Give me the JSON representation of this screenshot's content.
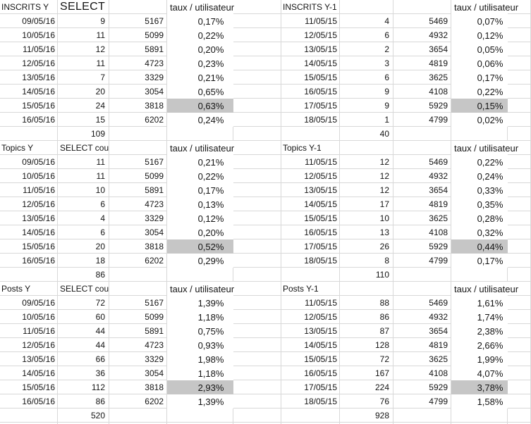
{
  "meta": {
    "gridline_color": "#d8d8d8",
    "highlight_color": "#c6c6c6",
    "text_color": "#141414",
    "background_color": "#ffffff"
  },
  "blocks": [
    {
      "left": {
        "title": "INSCRITS Y",
        "query_label": "SELECT c",
        "query_label_large": true,
        "taux_label": "taux / utilisateur",
        "rows": [
          {
            "date": "09/05/16",
            "count": "9",
            "users": "5167",
            "taux": "0,17%",
            "highlight": false
          },
          {
            "date": "10/05/16",
            "count": "11",
            "users": "5099",
            "taux": "0,22%",
            "highlight": false
          },
          {
            "date": "11/05/16",
            "count": "12",
            "users": "5891",
            "taux": "0,20%",
            "highlight": false
          },
          {
            "date": "12/05/16",
            "count": "11",
            "users": "4723",
            "taux": "0,23%",
            "highlight": false
          },
          {
            "date": "13/05/16",
            "count": "7",
            "users": "3329",
            "taux": "0,21%",
            "highlight": false
          },
          {
            "date": "14/05/16",
            "count": "20",
            "users": "3054",
            "taux": "0,65%",
            "highlight": false
          },
          {
            "date": "15/05/16",
            "count": "24",
            "users": "3818",
            "taux": "0,63%",
            "highlight": true
          },
          {
            "date": "16/05/16",
            "count": "15",
            "users": "6202",
            "taux": "0,24%",
            "highlight": false
          }
        ],
        "total": "109"
      },
      "right": {
        "title": "INSCRITS Y-1",
        "taux_label": "taux / utilisateur",
        "rows": [
          {
            "date": "11/05/15",
            "count": "4",
            "users": "5469",
            "taux": "0,07%",
            "highlight": false
          },
          {
            "date": "12/05/15",
            "count": "6",
            "users": "4932",
            "taux": "0,12%",
            "highlight": false
          },
          {
            "date": "13/05/15",
            "count": "2",
            "users": "3654",
            "taux": "0,05%",
            "highlight": false
          },
          {
            "date": "14/05/15",
            "count": "3",
            "users": "4819",
            "taux": "0,06%",
            "highlight": false
          },
          {
            "date": "15/05/15",
            "count": "6",
            "users": "3625",
            "taux": "0,17%",
            "highlight": false
          },
          {
            "date": "16/05/15",
            "count": "9",
            "users": "4108",
            "taux": "0,22%",
            "highlight": false
          },
          {
            "date": "17/05/15",
            "count": "9",
            "users": "5929",
            "taux": "0,15%",
            "highlight": true
          },
          {
            "date": "18/05/15",
            "count": "1",
            "users": "4799",
            "taux": "0,02%",
            "highlight": false
          }
        ],
        "total": "40"
      }
    },
    {
      "left": {
        "title": "Topics Y",
        "query_label": "SELECT count",
        "query_label_large": false,
        "taux_label": "taux / utilisateur",
        "rows": [
          {
            "date": "09/05/16",
            "count": "11",
            "users": "5167",
            "taux": "0,21%",
            "highlight": false
          },
          {
            "date": "10/05/16",
            "count": "11",
            "users": "5099",
            "taux": "0,22%",
            "highlight": false
          },
          {
            "date": "11/05/16",
            "count": "10",
            "users": "5891",
            "taux": "0,17%",
            "highlight": false
          },
          {
            "date": "12/05/16",
            "count": "6",
            "users": "4723",
            "taux": "0,13%",
            "highlight": false
          },
          {
            "date": "13/05/16",
            "count": "4",
            "users": "3329",
            "taux": "0,12%",
            "highlight": false
          },
          {
            "date": "14/05/16",
            "count": "6",
            "users": "3054",
            "taux": "0,20%",
            "highlight": false
          },
          {
            "date": "15/05/16",
            "count": "20",
            "users": "3818",
            "taux": "0,52%",
            "highlight": true
          },
          {
            "date": "16/05/16",
            "count": "18",
            "users": "6202",
            "taux": "0,29%",
            "highlight": false
          }
        ],
        "total": "86"
      },
      "right": {
        "title": "Topics Y-1",
        "taux_label": "taux / utilisateur",
        "rows": [
          {
            "date": "11/05/15",
            "count": "12",
            "users": "5469",
            "taux": "0,22%",
            "highlight": false
          },
          {
            "date": "12/05/15",
            "count": "12",
            "users": "4932",
            "taux": "0,24%",
            "highlight": false
          },
          {
            "date": "13/05/15",
            "count": "12",
            "users": "3654",
            "taux": "0,33%",
            "highlight": false
          },
          {
            "date": "14/05/15",
            "count": "17",
            "users": "4819",
            "taux": "0,35%",
            "highlight": false
          },
          {
            "date": "15/05/15",
            "count": "10",
            "users": "3625",
            "taux": "0,28%",
            "highlight": false
          },
          {
            "date": "16/05/15",
            "count": "13",
            "users": "4108",
            "taux": "0,32%",
            "highlight": false
          },
          {
            "date": "17/05/15",
            "count": "26",
            "users": "5929",
            "taux": "0,44%",
            "highlight": true
          },
          {
            "date": "18/05/15",
            "count": "8",
            "users": "4799",
            "taux": "0,17%",
            "highlight": false
          }
        ],
        "total": "110"
      }
    },
    {
      "left": {
        "title": "Posts Y",
        "query_label": "SELECT count",
        "query_label_large": false,
        "taux_label": "taux / utilisateur",
        "rows": [
          {
            "date": "09/05/16",
            "count": "72",
            "users": "5167",
            "taux": "1,39%",
            "highlight": false
          },
          {
            "date": "10/05/16",
            "count": "60",
            "users": "5099",
            "taux": "1,18%",
            "highlight": false
          },
          {
            "date": "11/05/16",
            "count": "44",
            "users": "5891",
            "taux": "0,75%",
            "highlight": false
          },
          {
            "date": "12/05/16",
            "count": "44",
            "users": "4723",
            "taux": "0,93%",
            "highlight": false
          },
          {
            "date": "13/05/16",
            "count": "66",
            "users": "3329",
            "taux": "1,98%",
            "highlight": false
          },
          {
            "date": "14/05/16",
            "count": "36",
            "users": "3054",
            "taux": "1,18%",
            "highlight": false
          },
          {
            "date": "15/05/16",
            "count": "112",
            "users": "3818",
            "taux": "2,93%",
            "highlight": true
          },
          {
            "date": "16/05/16",
            "count": "86",
            "users": "6202",
            "taux": "1,39%",
            "highlight": false
          }
        ],
        "total": "520"
      },
      "right": {
        "title": "Posts Y-1",
        "taux_label": "taux / utilisateur",
        "rows": [
          {
            "date": "11/05/15",
            "count": "88",
            "users": "5469",
            "taux": "1,61%",
            "highlight": false
          },
          {
            "date": "12/05/15",
            "count": "86",
            "users": "4932",
            "taux": "1,74%",
            "highlight": false
          },
          {
            "date": "13/05/15",
            "count": "87",
            "users": "3654",
            "taux": "2,38%",
            "highlight": false
          },
          {
            "date": "14/05/15",
            "count": "128",
            "users": "4819",
            "taux": "2,66%",
            "highlight": false
          },
          {
            "date": "15/05/15",
            "count": "72",
            "users": "3625",
            "taux": "1,99%",
            "highlight": false
          },
          {
            "date": "16/05/15",
            "count": "167",
            "users": "4108",
            "taux": "4,07%",
            "highlight": false
          },
          {
            "date": "17/05/15",
            "count": "224",
            "users": "5929",
            "taux": "3,78%",
            "highlight": true
          },
          {
            "date": "18/05/15",
            "count": "76",
            "users": "4799",
            "taux": "1,58%",
            "highlight": false
          }
        ],
        "total": "928"
      }
    }
  ]
}
